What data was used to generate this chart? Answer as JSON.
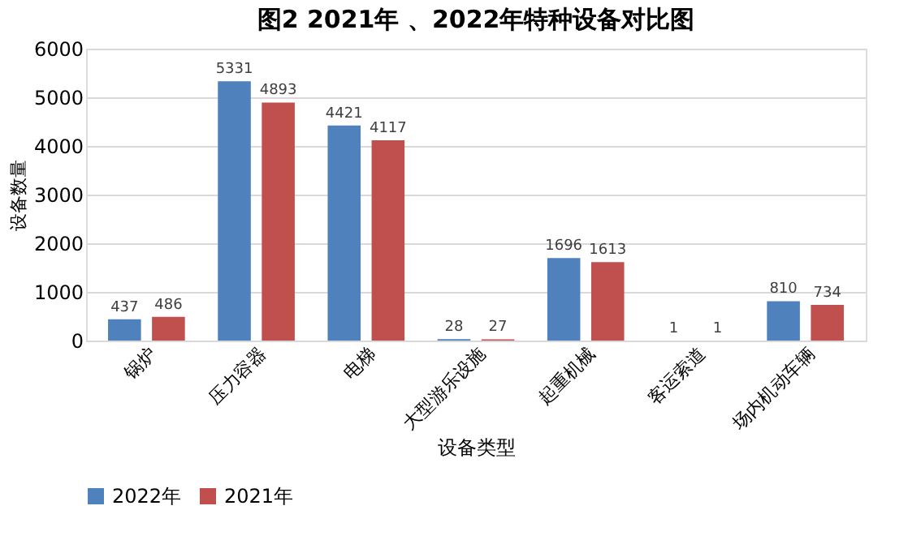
{
  "chart_data": {
    "type": "bar",
    "title": "图2        2021年 、2022年特种设备对比图",
    "xlabel": "设备类型",
    "ylabel": "设备数量",
    "categories": [
      "锅炉",
      "压力容器",
      "电梯",
      "大型游乐设施",
      "起重机械",
      "客运索道",
      "场内机动车辆"
    ],
    "series": [
      {
        "name": "2022年",
        "color": "#4f81bd",
        "values": [
          437,
          5331,
          4421,
          28,
          1696,
          1,
          810
        ]
      },
      {
        "name": "2021年",
        "color": "#c0504d",
        "values": [
          486,
          4893,
          4117,
          27,
          1613,
          1,
          734
        ]
      }
    ],
    "ylim": [
      0,
      6000
    ],
    "yticks": [
      0,
      1000,
      2000,
      3000,
      4000,
      5000,
      6000
    ],
    "grid": "y",
    "legend": "bottom",
    "data_labels": true
  }
}
